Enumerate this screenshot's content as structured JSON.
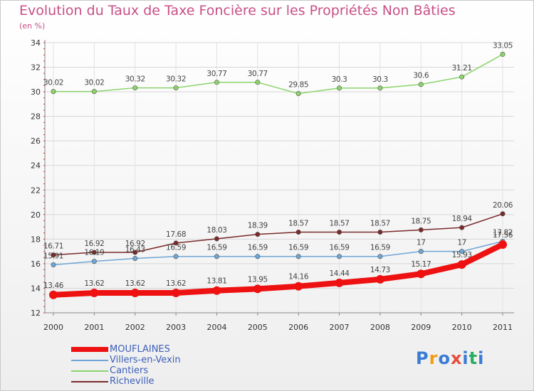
{
  "header": {
    "title": "Evolution du Taux de Taxe Foncière sur les Propriétés Non Bâties",
    "unit": "(en %)"
  },
  "logo": {
    "letters": [
      "P",
      "r",
      "o",
      "x",
      "i",
      "t",
      "i"
    ],
    "colors": [
      "#3a7bd5",
      "#f39c12",
      "#3a7bd5",
      "#e74c3c",
      "#3a7bd5",
      "#27ae60",
      "#3a7bd5"
    ]
  },
  "chart_data": {
    "type": "line",
    "title": "Evolution du Taux de Taxe Foncière sur les Propriétés Non Bâties",
    "ylabel": "(en %)",
    "xlabel": "",
    "categories": [
      "2000",
      "2001",
      "2002",
      "2003",
      "2004",
      "2005",
      "2006",
      "2007",
      "2008",
      "2009",
      "2010",
      "2011"
    ],
    "ylim": [
      12,
      34
    ],
    "yticks": [
      12,
      14,
      16,
      18,
      20,
      22,
      24,
      26,
      28,
      30,
      32,
      34
    ],
    "grid": true,
    "legend_position": "bottom-left",
    "series": [
      {
        "name": "Cantiers",
        "color": "#8bd46a",
        "values": [
          30.02,
          30.02,
          30.32,
          30.32,
          30.77,
          30.77,
          29.85,
          30.3,
          30.3,
          30.6,
          31.21,
          33.05
        ],
        "labels": [
          "30.02",
          "30.02",
          "30.32",
          "30.32",
          "30.77",
          "30.77",
          "29.85",
          "30.3",
          "30.3",
          "30.6",
          "31.21",
          "33.05"
        ]
      },
      {
        "name": "Richeville",
        "color": "#7a2a2a",
        "values": [
          16.71,
          16.92,
          16.92,
          17.68,
          18.03,
          18.39,
          18.57,
          18.57,
          18.57,
          18.75,
          18.94,
          20.06
        ],
        "labels": [
          "16.71",
          "16.92",
          "16.92",
          "17.68",
          "18.03",
          "18.39",
          "18.57",
          "18.57",
          "18.57",
          "18.75",
          "18.94",
          "20.06"
        ]
      },
      {
        "name": "Villers-en-Vexin",
        "color": "#6fa6d6",
        "values": [
          15.91,
          16.19,
          16.43,
          16.59,
          16.59,
          16.59,
          16.59,
          16.59,
          16.59,
          17,
          17,
          17.82
        ],
        "labels": [
          "15.91",
          "16.19",
          "16.43",
          "16.59",
          "16.59",
          "16.59",
          "16.59",
          "16.59",
          "16.59",
          "17",
          "17",
          "17.82"
        ]
      },
      {
        "name": "MOUFLAINES",
        "color": "#ee1111",
        "values": [
          13.46,
          13.62,
          13.62,
          13.62,
          13.81,
          13.95,
          14.16,
          14.44,
          14.73,
          15.17,
          15.93,
          17.56
        ],
        "labels": [
          "13.46",
          "13.62",
          "13.62",
          "13.62",
          "13.81",
          "13.95",
          "14.16",
          "14.44",
          "14.73",
          "15.17",
          "15.93",
          "17.56"
        ]
      }
    ],
    "legend_order": [
      "MOUFLAINES",
      "Villers-en-Vexin",
      "Cantiers",
      "Richeville"
    ]
  }
}
